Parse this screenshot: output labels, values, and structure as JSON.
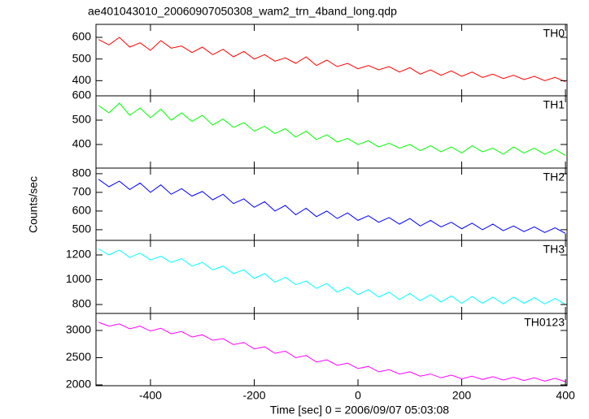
{
  "chart_data": {
    "type": "line",
    "title": "ae401043010_20060907050308_wam2_trn_4band_long.qdp",
    "xlabel": "Time [sec] 0 = 2006/09/07 05:03:08",
    "ylabel": "Counts/sec",
    "xlim": [
      -505,
      403
    ],
    "xticks": [
      -400,
      -200,
      0,
      200,
      400
    ],
    "x": [
      -500,
      -480,
      -460,
      -440,
      -420,
      -400,
      -380,
      -360,
      -340,
      -320,
      -300,
      -280,
      -260,
      -240,
      -220,
      -200,
      -180,
      -160,
      -140,
      -120,
      -100,
      -80,
      -60,
      -40,
      -20,
      0,
      20,
      40,
      60,
      80,
      100,
      120,
      140,
      160,
      180,
      200,
      220,
      240,
      260,
      280,
      300,
      320,
      340,
      360,
      380,
      400
    ],
    "panels": [
      {
        "name": "TH0",
        "color": "#ff0000",
        "ylim": [
          330,
          660
        ],
        "yticks": [
          400,
          500,
          600
        ],
        "values": [
          590,
          565,
          600,
          555,
          575,
          540,
          585,
          550,
          560,
          530,
          555,
          520,
          545,
          510,
          535,
          500,
          520,
          490,
          505,
          480,
          510,
          470,
          495,
          465,
          480,
          455,
          470,
          450,
          465,
          440,
          460,
          430,
          450,
          425,
          445,
          420,
          440,
          415,
          430,
          410,
          425,
          405,
          420,
          400,
          415,
          395
        ]
      },
      {
        "name": "TH1",
        "color": "#00ff00",
        "ylim": [
          303,
          600
        ],
        "yticks": [
          400,
          500,
          600
        ],
        "values": [
          560,
          530,
          570,
          520,
          550,
          510,
          545,
          500,
          530,
          495,
          520,
          480,
          505,
          470,
          490,
          455,
          475,
          445,
          465,
          430,
          455,
          420,
          440,
          410,
          425,
          400,
          415,
          390,
          405,
          385,
          400,
          375,
          395,
          370,
          390,
          365,
          395,
          370,
          385,
          360,
          390,
          365,
          385,
          360,
          380,
          355
        ]
      },
      {
        "name": "TH2",
        "color": "#0000ff",
        "ylim": [
          443,
          830
        ],
        "yticks": [
          500,
          600,
          700,
          800
        ],
        "values": [
          770,
          730,
          760,
          715,
          750,
          700,
          740,
          690,
          720,
          680,
          705,
          660,
          690,
          640,
          665,
          620,
          650,
          600,
          630,
          580,
          615,
          570,
          600,
          560,
          590,
          550,
          575,
          540,
          565,
          530,
          560,
          520,
          550,
          515,
          540,
          505,
          535,
          500,
          530,
          495,
          520,
          490,
          515,
          485,
          510,
          480
        ]
      },
      {
        "name": "TH3",
        "color": "#00ffff",
        "ylim": [
          728,
          1318
        ],
        "yticks": [
          800,
          1000,
          1200
        ],
        "values": [
          1250,
          1200,
          1240,
          1180,
          1215,
          1160,
          1190,
          1140,
          1170,
          1110,
          1140,
          1080,
          1110,
          1050,
          1080,
          1010,
          1050,
          980,
          1020,
          960,
          990,
          930,
          970,
          900,
          940,
          880,
          920,
          860,
          900,
          840,
          890,
          830,
          880,
          820,
          870,
          810,
          865,
          810,
          860,
          805,
          860,
          810,
          855,
          805,
          850,
          800
        ]
      },
      {
        "name": "TH0123",
        "color": "#ff00ff",
        "ylim": [
          1985,
          3313
        ],
        "yticks": [
          2000,
          2500,
          3000
        ],
        "values": [
          3150,
          3080,
          3120,
          3030,
          3080,
          2990,
          3040,
          2940,
          2980,
          2880,
          2920,
          2820,
          2850,
          2740,
          2780,
          2660,
          2700,
          2580,
          2620,
          2500,
          2540,
          2420,
          2460,
          2360,
          2400,
          2300,
          2340,
          2240,
          2280,
          2200,
          2240,
          2160,
          2200,
          2130,
          2180,
          2110,
          2160,
          2100,
          2150,
          2090,
          2140,
          2080,
          2130,
          2070,
          2120,
          2060
        ]
      }
    ]
  }
}
